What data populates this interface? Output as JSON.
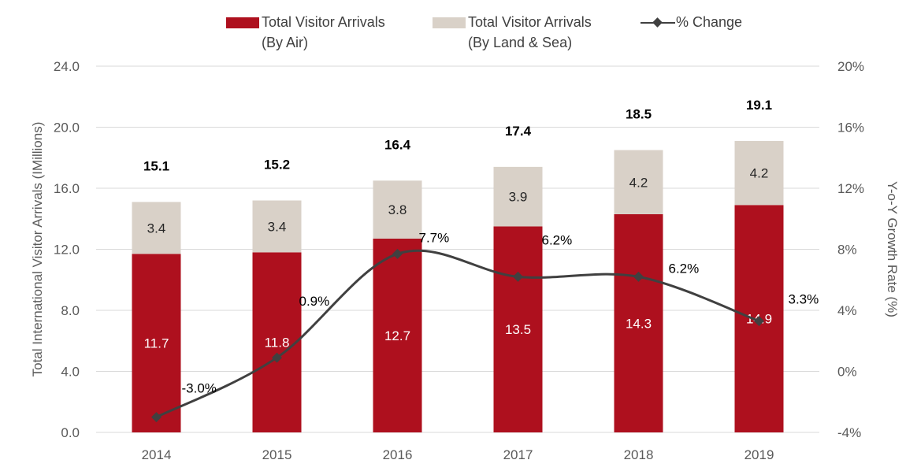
{
  "legend": {
    "air_line1": "Total Visitor Arrivals",
    "air_line2": "(By Air)",
    "landsea_line1": "Total Visitor Arrivals",
    "landsea_line2": "(By Land & Sea)",
    "change": "% Change"
  },
  "colors": {
    "air": "#ae101e",
    "landsea": "#d9d1c8",
    "line": "#404040",
    "grid": "#d9d9d9",
    "axis_text": "#595959"
  },
  "chart_data": {
    "type": "bar",
    "categories": [
      "2014",
      "2015",
      "2016",
      "2017",
      "2018",
      "2019"
    ],
    "series": [
      {
        "name": "Total Visitor Arrivals (By Air)",
        "values": [
          11.7,
          11.8,
          12.7,
          13.5,
          14.3,
          14.9
        ]
      },
      {
        "name": "Total Visitor Arrivals (By Land & Sea)",
        "values": [
          3.4,
          3.4,
          3.8,
          3.9,
          4.2,
          4.2
        ]
      }
    ],
    "stacked": true,
    "totals": [
      "15.1",
      "15.2",
      "16.4",
      "17.4",
      "18.5",
      "19.1"
    ],
    "air_labels": [
      "11.7",
      "11.8",
      "12.7",
      "13.5",
      "14.3",
      "14.9"
    ],
    "landsea_labels": [
      "3.4",
      "3.4",
      "3.8",
      "3.9",
      "4.2",
      "4.2"
    ],
    "line_series": {
      "name": "% Change",
      "axis": "right",
      "values": [
        -3.0,
        0.9,
        7.7,
        6.2,
        6.2,
        3.3
      ],
      "labels": [
        "-3.0%",
        "0.9%",
        "7.7%",
        "6.2%",
        "6.2%",
        "3.3%"
      ]
    },
    "ylabel": "Total International Visitor Arrivals (IMillions)",
    "y2label": "Y-o-Y Growth Rate (%)",
    "ylim": [
      0,
      24
    ],
    "y2lim": [
      -4,
      20
    ],
    "yticks": [
      "0.0",
      "4.0",
      "8.0",
      "12.0",
      "16.0",
      "20.0",
      "24.0"
    ],
    "y2ticks": [
      "-4%",
      "0%",
      "4%",
      "8%",
      "12%",
      "16%",
      "20%"
    ],
    "grid": true,
    "legend_position": "top"
  }
}
